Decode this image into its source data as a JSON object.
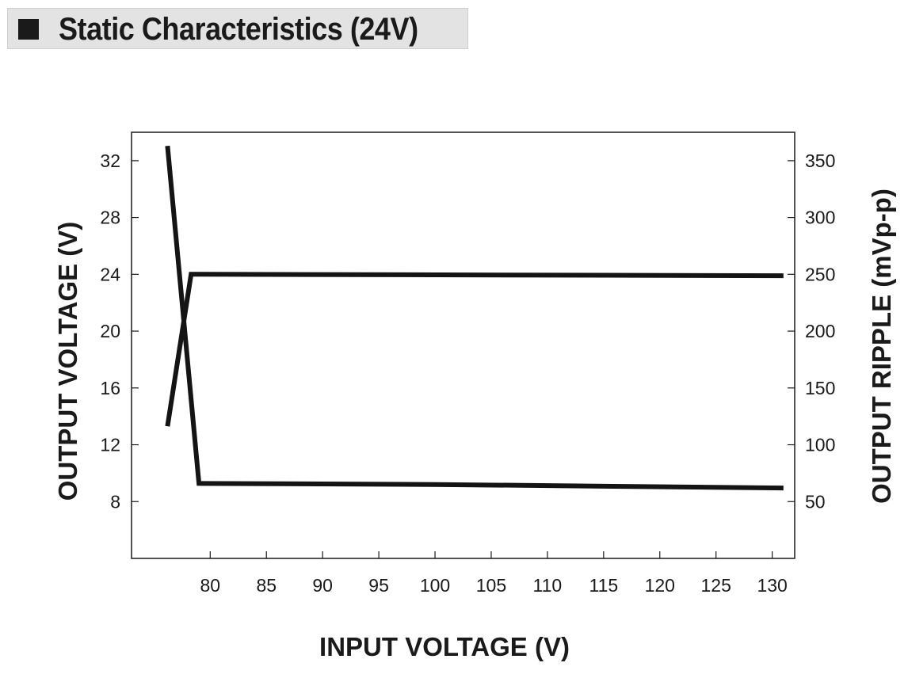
{
  "title": "Static Characteristics (24V)",
  "chart_data": {
    "type": "line",
    "xlabel": "INPUT VOLTAGE (V)",
    "ylabel_left": "OUTPUT VOLTAGE (V)",
    "ylabel_right": "OUTPUT RIPPLE (mVp-p)",
    "xlim": [
      73,
      132
    ],
    "ylim_left": [
      4,
      34
    ],
    "ylim_right": [
      0,
      375
    ],
    "x_ticks": [
      80,
      85,
      90,
      95,
      100,
      105,
      110,
      115,
      120,
      125,
      130
    ],
    "y_left_ticks": [
      8,
      12,
      16,
      20,
      24,
      28,
      32
    ],
    "y_right_ticks": [
      50,
      100,
      150,
      200,
      250,
      300,
      350
    ],
    "grid": false,
    "series": [
      {
        "axis": "left",
        "x": [
          76.2,
          78.3,
          79.2,
          131
        ],
        "y": [
          13.3,
          24.0,
          24.0,
          23.9
        ]
      },
      {
        "axis": "right",
        "x": [
          76.2,
          79.0,
          100,
          131
        ],
        "y": [
          363,
          66,
          65,
          62
        ]
      }
    ]
  }
}
